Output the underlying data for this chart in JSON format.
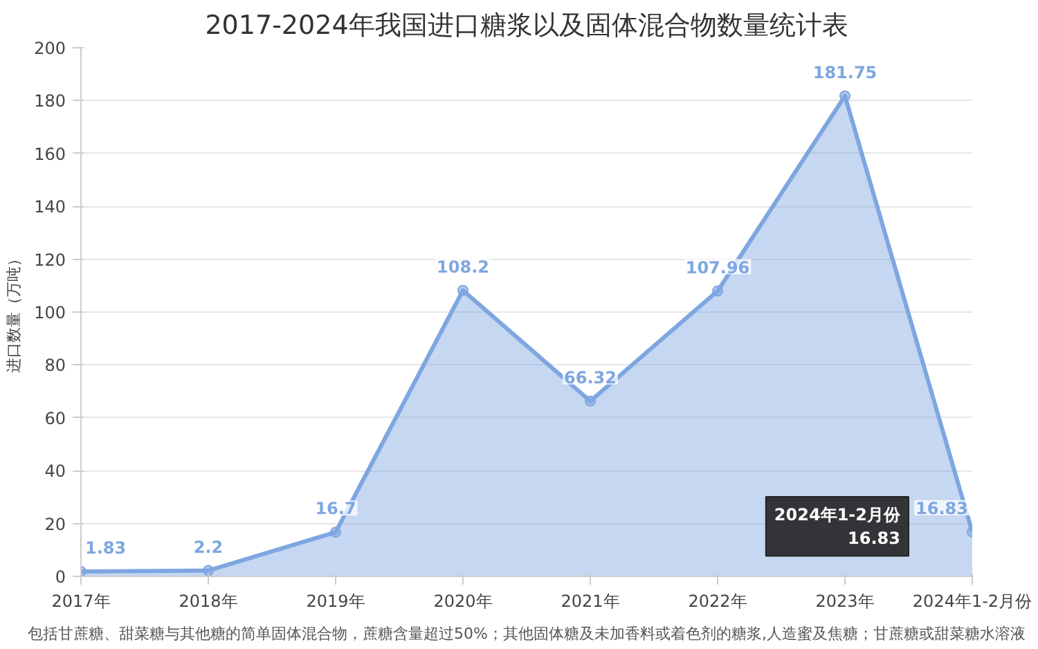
{
  "chart_data": {
    "type": "area",
    "title": "2017-2024年我国进口糖浆以及固体混合物数量统计表",
    "ylabel": "进口数量（万吨）",
    "categories": [
      "2017年",
      "2018年",
      "2019年",
      "2020年",
      "2021年",
      "2022年",
      "2023年",
      "2024年1-2月份"
    ],
    "series": [
      {
        "color": "#7ea6e0",
        "values": [
          1.83,
          2.2,
          16.7,
          108.2,
          66.32,
          107.96,
          181.75,
          16.83
        ]
      }
    ],
    "ylim": [
      0,
      200
    ],
    "yticks": [
      0,
      20,
      40,
      60,
      80,
      100,
      120,
      140,
      160,
      180,
      200
    ],
    "grid": "y",
    "marker": "circle",
    "data_labels": true,
    "annotations": [
      "包括甘蔗糖、甜菜糖与其他糖的简单固体混合物，蔗糖含量超过50%；其他固体糖及未加香料或着色剂的糖浆,人造蜜及焦糖；甘蔗糖或甜菜糖水溶液",
      "2024年1-2月份\n16.83"
    ]
  }
}
